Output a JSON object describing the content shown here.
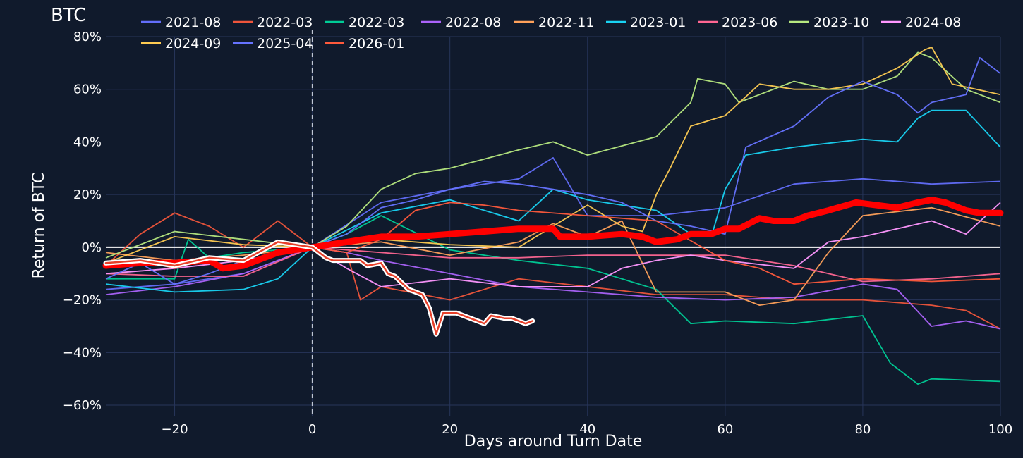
{
  "chart_data": {
    "type": "line",
    "title": "BTC",
    "xlabel": "Days around Turn Date",
    "ylabel": "Return of BTC",
    "xlim": [
      -30,
      100
    ],
    "ylim": [
      -64,
      80
    ],
    "x_ticks": [
      -20,
      0,
      20,
      40,
      60,
      80,
      100
    ],
    "x_tick_labels": [
      "−20",
      "0",
      "20",
      "40",
      "60",
      "80",
      "100"
    ],
    "y_ticks": [
      -60,
      -40,
      -20,
      0,
      20,
      40,
      60,
      80
    ],
    "y_tick_labels": [
      "−60%",
      "−40%",
      "−20%",
      "0%",
      "20%",
      "40%",
      "60%",
      "80%"
    ],
    "grid": true,
    "legend_position": "top",
    "turn_date_marker_x": 0,
    "zero_line_y": 0,
    "colors": {
      "background": "#101a2c",
      "grid": "#27355a",
      "zero_line": "#ffffff",
      "marker_line": "#bfc6d4",
      "average": "#ff0000",
      "current_outline": "#ffffff",
      "current_core": "#e8402a"
    },
    "series": [
      {
        "name": "2021-08",
        "color": "#636efa",
        "points": [
          [
            -30,
            -16
          ],
          [
            -20,
            -14
          ],
          [
            -10,
            -10
          ],
          [
            0,
            0
          ],
          [
            10,
            17
          ],
          [
            20,
            22
          ],
          [
            30,
            26
          ],
          [
            35,
            34
          ],
          [
            40,
            12
          ],
          [
            50,
            12
          ],
          [
            60,
            15
          ],
          [
            70,
            24
          ],
          [
            80,
            26
          ],
          [
            90,
            24
          ],
          [
            100,
            25
          ]
        ]
      },
      {
        "name": "2022-03",
        "color": "#ef553b",
        "points": [
          [
            -30,
            -7
          ],
          [
            -25,
            5
          ],
          [
            -20,
            13
          ],
          [
            -15,
            8
          ],
          [
            -10,
            0
          ],
          [
            -5,
            10
          ],
          [
            0,
            0
          ],
          [
            5,
            -2
          ],
          [
            7,
            -20
          ],
          [
            10,
            -15
          ],
          [
            20,
            -20
          ],
          [
            30,
            -12
          ],
          [
            40,
            -15
          ],
          [
            50,
            -18
          ],
          [
            60,
            -18
          ],
          [
            70,
            -20
          ],
          [
            80,
            -20
          ],
          [
            90,
            -22
          ],
          [
            95,
            -24
          ],
          [
            100,
            -31
          ]
        ]
      },
      {
        "name": "2022-03",
        "color": "#00cc96",
        "points": [
          [
            -30,
            -12
          ],
          [
            -20,
            -12
          ],
          [
            -18,
            3
          ],
          [
            -15,
            -4
          ],
          [
            -10,
            -2
          ],
          [
            0,
            0
          ],
          [
            5,
            5
          ],
          [
            10,
            12
          ],
          [
            20,
            -1
          ],
          [
            30,
            -5
          ],
          [
            40,
            -8
          ],
          [
            50,
            -16
          ],
          [
            55,
            -29
          ],
          [
            60,
            -28
          ],
          [
            70,
            -29
          ],
          [
            80,
            -26
          ],
          [
            84,
            -44
          ],
          [
            88,
            -52
          ],
          [
            90,
            -50
          ],
          [
            100,
            -51
          ]
        ]
      },
      {
        "name": "2022-08",
        "color": "#ab63fa",
        "points": [
          [
            -30,
            -18
          ],
          [
            -20,
            -15
          ],
          [
            -10,
            -10
          ],
          [
            0,
            0
          ],
          [
            5,
            -2
          ],
          [
            10,
            -5
          ],
          [
            20,
            -10
          ],
          [
            30,
            -15
          ],
          [
            40,
            -17
          ],
          [
            50,
            -19
          ],
          [
            60,
            -20
          ],
          [
            70,
            -19
          ],
          [
            80,
            -14
          ],
          [
            85,
            -16
          ],
          [
            90,
            -30
          ],
          [
            95,
            -28
          ],
          [
            100,
            -31
          ]
        ]
      },
      {
        "name": "2022-11",
        "color": "#ffa15a",
        "points": [
          [
            -30,
            -2
          ],
          [
            -20,
            -5
          ],
          [
            -10,
            -3
          ],
          [
            0,
            0
          ],
          [
            10,
            2
          ],
          [
            20,
            -3
          ],
          [
            30,
            2
          ],
          [
            35,
            9
          ],
          [
            40,
            4
          ],
          [
            45,
            10
          ],
          [
            50,
            -17
          ],
          [
            60,
            -17
          ],
          [
            65,
            -22
          ],
          [
            70,
            -20
          ],
          [
            75,
            -2
          ],
          [
            80,
            12
          ],
          [
            90,
            15
          ],
          [
            100,
            8
          ]
        ]
      },
      {
        "name": "2023-01",
        "color": "#19d3f3",
        "points": [
          [
            -30,
            -14
          ],
          [
            -20,
            -17
          ],
          [
            -10,
            -16
          ],
          [
            -5,
            -12
          ],
          [
            0,
            0
          ],
          [
            10,
            13
          ],
          [
            20,
            18
          ],
          [
            30,
            10
          ],
          [
            35,
            22
          ],
          [
            40,
            18
          ],
          [
            50,
            14
          ],
          [
            55,
            5
          ],
          [
            58,
            4
          ],
          [
            60,
            22
          ],
          [
            63,
            35
          ],
          [
            70,
            38
          ],
          [
            80,
            41
          ],
          [
            85,
            40
          ],
          [
            88,
            49
          ],
          [
            90,
            52
          ],
          [
            95,
            52
          ],
          [
            100,
            38
          ]
        ]
      },
      {
        "name": "2023-06",
        "color": "#ff6692",
        "points": [
          [
            -30,
            -10
          ],
          [
            -20,
            -11
          ],
          [
            -10,
            -11
          ],
          [
            0,
            0
          ],
          [
            10,
            -2
          ],
          [
            20,
            -4
          ],
          [
            30,
            -4
          ],
          [
            40,
            -3
          ],
          [
            50,
            -3
          ],
          [
            60,
            -3
          ],
          [
            70,
            -7
          ],
          [
            80,
            -13
          ],
          [
            90,
            -12
          ],
          [
            100,
            -10
          ]
        ]
      },
      {
        "name": "2023-10",
        "color": "#b6e880",
        "points": [
          [
            -30,
            -4
          ],
          [
            -20,
            6
          ],
          [
            -10,
            3
          ],
          [
            0,
            0
          ],
          [
            5,
            8
          ],
          [
            10,
            22
          ],
          [
            15,
            28
          ],
          [
            20,
            30
          ],
          [
            30,
            37
          ],
          [
            35,
            40
          ],
          [
            40,
            35
          ],
          [
            50,
            42
          ],
          [
            55,
            55
          ],
          [
            56,
            64
          ],
          [
            60,
            62
          ],
          [
            62,
            55
          ],
          [
            70,
            63
          ],
          [
            75,
            60
          ],
          [
            80,
            60
          ],
          [
            85,
            65
          ],
          [
            88,
            74
          ],
          [
            90,
            72
          ],
          [
            95,
            60
          ],
          [
            100,
            55
          ]
        ]
      },
      {
        "name": "2024-08",
        "color": "#ff97ff",
        "points": [
          [
            -30,
            -10
          ],
          [
            -20,
            -8
          ],
          [
            -10,
            -5
          ],
          [
            0,
            0
          ],
          [
            5,
            -8
          ],
          [
            10,
            -15
          ],
          [
            20,
            -12
          ],
          [
            30,
            -15
          ],
          [
            40,
            -15
          ],
          [
            45,
            -8
          ],
          [
            50,
            -5
          ],
          [
            55,
            -3
          ],
          [
            60,
            -5
          ],
          [
            70,
            -8
          ],
          [
            75,
            2
          ],
          [
            80,
            4
          ],
          [
            90,
            10
          ],
          [
            95,
            5
          ],
          [
            100,
            17
          ]
        ]
      },
      {
        "name": "2024-09",
        "color": "#fecb52",
        "points": [
          [
            -30,
            -6
          ],
          [
            -20,
            4
          ],
          [
            -10,
            1
          ],
          [
            0,
            0
          ],
          [
            10,
            3
          ],
          [
            20,
            1
          ],
          [
            30,
            0
          ],
          [
            40,
            16
          ],
          [
            45,
            8
          ],
          [
            48,
            6
          ],
          [
            50,
            20
          ],
          [
            52,
            30
          ],
          [
            55,
            46
          ],
          [
            60,
            50
          ],
          [
            65,
            62
          ],
          [
            70,
            60
          ],
          [
            75,
            60
          ],
          [
            80,
            62
          ],
          [
            85,
            68
          ],
          [
            89,
            75
          ],
          [
            90,
            76
          ],
          [
            93,
            62
          ],
          [
            100,
            58
          ]
        ]
      },
      {
        "name": "2025-04",
        "color": "#6673ff",
        "points": [
          [
            -30,
            -12
          ],
          [
            -25,
            -6
          ],
          [
            -20,
            -14
          ],
          [
            -15,
            -10
          ],
          [
            -10,
            -5
          ],
          [
            -5,
            2
          ],
          [
            0,
            0
          ],
          [
            5,
            5
          ],
          [
            10,
            15
          ],
          [
            15,
            18
          ],
          [
            20,
            22
          ],
          [
            25,
            25
          ],
          [
            30,
            24
          ],
          [
            40,
            20
          ],
          [
            45,
            17
          ],
          [
            50,
            10
          ],
          [
            55,
            8
          ],
          [
            60,
            5
          ],
          [
            63,
            38
          ],
          [
            70,
            46
          ],
          [
            75,
            57
          ],
          [
            80,
            63
          ],
          [
            85,
            58
          ],
          [
            88,
            51
          ],
          [
            90,
            55
          ],
          [
            95,
            58
          ],
          [
            97,
            72
          ],
          [
            100,
            66
          ]
        ]
      },
      {
        "name": "2026-01",
        "color": "#ff5a3c",
        "points": [
          [
            -30,
            -6
          ],
          [
            -25,
            -5
          ],
          [
            -20,
            -8
          ],
          [
            -15,
            -4
          ],
          [
            -10,
            -6
          ],
          [
            -5,
            2
          ],
          [
            0,
            0
          ],
          [
            5,
            -2
          ],
          [
            10,
            3
          ],
          [
            15,
            14
          ],
          [
            20,
            17
          ],
          [
            25,
            16
          ],
          [
            30,
            14
          ],
          [
            40,
            12
          ],
          [
            50,
            10
          ],
          [
            60,
            -5
          ],
          [
            65,
            -8
          ],
          [
            70,
            -14
          ],
          [
            80,
            -12
          ],
          [
            90,
            -13
          ],
          [
            100,
            -12
          ]
        ]
      }
    ],
    "average_series": {
      "points": [
        [
          -30,
          -7
        ],
        [
          -25,
          -6
        ],
        [
          -20,
          -6
        ],
        [
          -15,
          -5
        ],
        [
          -13,
          -8
        ],
        [
          -10,
          -7
        ],
        [
          -5,
          -2
        ],
        [
          0,
          0
        ],
        [
          5,
          2
        ],
        [
          10,
          4
        ],
        [
          15,
          4
        ],
        [
          20,
          5
        ],
        [
          25,
          6
        ],
        [
          30,
          7
        ],
        [
          35,
          7
        ],
        [
          36,
          4
        ],
        [
          40,
          4
        ],
        [
          45,
          5
        ],
        [
          48,
          4
        ],
        [
          50,
          2
        ],
        [
          53,
          3
        ],
        [
          55,
          5
        ],
        [
          58,
          5
        ],
        [
          60,
          7
        ],
        [
          62,
          7
        ],
        [
          65,
          11
        ],
        [
          67,
          10
        ],
        [
          70,
          10
        ],
        [
          72,
          12
        ],
        [
          75,
          14
        ],
        [
          79,
          17
        ],
        [
          82,
          16
        ],
        [
          85,
          15
        ],
        [
          88,
          17
        ],
        [
          90,
          18
        ],
        [
          92,
          17
        ],
        [
          95,
          14
        ],
        [
          97,
          13
        ],
        [
          100,
          13
        ]
      ]
    },
    "current_series": {
      "points": [
        [
          -30,
          -6
        ],
        [
          -25,
          -5
        ],
        [
          -20,
          -7
        ],
        [
          -15,
          -4
        ],
        [
          -10,
          -5
        ],
        [
          -5,
          2
        ],
        [
          0,
          0
        ],
        [
          2,
          -4
        ],
        [
          3,
          -5
        ],
        [
          7,
          -5
        ],
        [
          8,
          -7
        ],
        [
          10,
          -6
        ],
        [
          11,
          -10
        ],
        [
          12,
          -11
        ],
        [
          14,
          -16
        ],
        [
          16,
          -18
        ],
        [
          17,
          -23
        ],
        [
          18,
          -33
        ],
        [
          19,
          -25
        ],
        [
          21,
          -25
        ],
        [
          23,
          -27
        ],
        [
          25,
          -29
        ],
        [
          26,
          -26
        ],
        [
          28,
          -27
        ],
        [
          29,
          -27
        ],
        [
          31,
          -29
        ],
        [
          32,
          -28
        ]
      ]
    }
  }
}
